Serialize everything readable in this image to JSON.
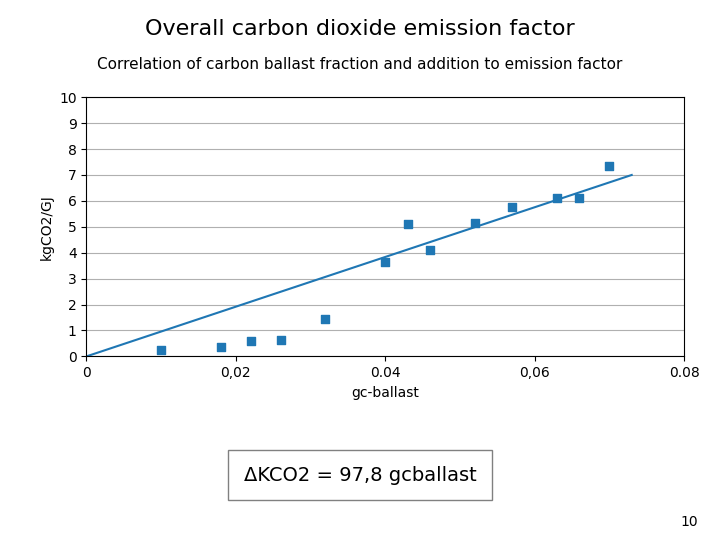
{
  "chart_data": {
    "type": "scatter",
    "title": "Overall carbon dioxide emission factor",
    "subtitle": "Correlation of carbon ballast fraction and addition to emission factor",
    "xlabel": "gc-ballast",
    "ylabel": "kgCO2/GJ",
    "series": [
      {
        "type": "scatter",
        "marker": "square",
        "x": [
          0.01,
          0.018,
          0.022,
          0.026,
          0.032,
          0.04,
          0.043,
          0.046,
          0.052,
          0.057,
          0.063,
          0.066,
          0.07
        ],
        "values": [
          0.25,
          0.35,
          0.6,
          0.65,
          1.45,
          3.65,
          5.1,
          4.1,
          5.15,
          5.75,
          6.1,
          6.1,
          7.35
        ]
      },
      {
        "type": "line",
        "line_style": "solid",
        "x": [
          0.0,
          0.073
        ],
        "values": [
          0.0,
          7.0
        ]
      }
    ],
    "xlim": [
      0,
      0.08
    ],
    "ylim": [
      0,
      10
    ],
    "xticks": [
      0,
      {
        "value": 0.02,
        "label": "0,02"
      },
      0.04,
      {
        "value": 0.06,
        "label": "0,06"
      },
      0.08
    ],
    "yticks": [
      0,
      1,
      2,
      3,
      4,
      5,
      6,
      7,
      8,
      9,
      10
    ],
    "grid": "y",
    "annotations": [
      "ΔKCO2 = 97,8 gcballast",
      "10"
    ]
  }
}
